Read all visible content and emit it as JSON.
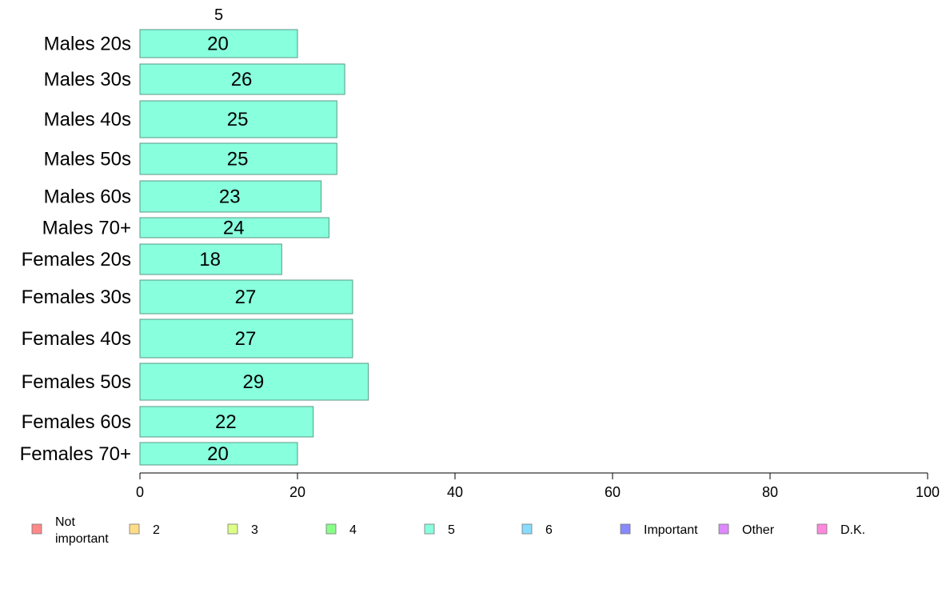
{
  "chart_data": {
    "type": "bar",
    "orientation": "horizontal",
    "stacked": true,
    "xlim": [
      0,
      100
    ],
    "xticks": [
      0,
      20,
      40,
      60,
      80,
      100
    ],
    "grid": false,
    "legend_position": "bottom",
    "categories": [
      "Males 20s",
      "Males 30s",
      "Males 40s",
      "Males 50s",
      "Males 60s",
      "Males 70+",
      "Females 20s",
      "Females 30s",
      "Females 40s",
      "Females 50s",
      "Females 60s",
      "Females 70+"
    ],
    "series_header": "5",
    "series": [
      {
        "name": "5",
        "color": "#88ffdd",
        "values": [
          20,
          26,
          25,
          25,
          23,
          24,
          18,
          27,
          27,
          29,
          22,
          20
        ]
      }
    ],
    "legend": [
      {
        "label": "Not\nimportant",
        "color": "#ff8888"
      },
      {
        "label": "2",
        "color": "#ffdd88"
      },
      {
        "label": "3",
        "color": "#ddff88"
      },
      {
        "label": "4",
        "color": "#88ff88"
      },
      {
        "label": "5",
        "color": "#88ffdd"
      },
      {
        "label": "6",
        "color": "#88ddff"
      },
      {
        "label": "Important",
        "color": "#8888ff"
      },
      {
        "label": "Other",
        "color": "#dd88ff"
      },
      {
        "label": "D.K.",
        "color": "#ff88dd"
      }
    ]
  }
}
